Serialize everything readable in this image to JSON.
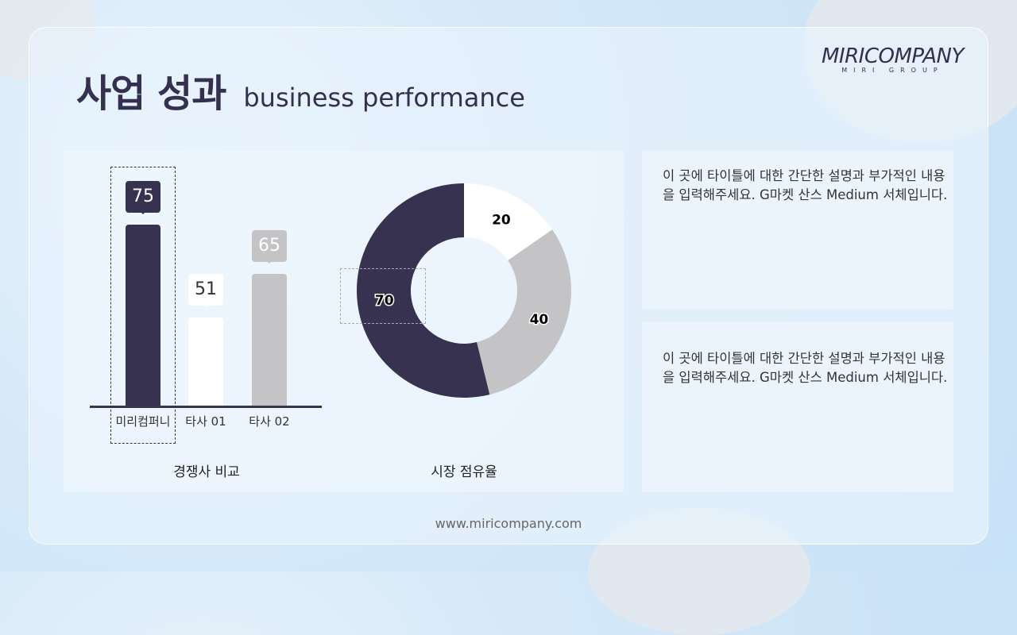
{
  "header": {
    "title_ko": "사업 성과",
    "title_en": "business performance"
  },
  "logo": {
    "main": "MIRICOMPANY",
    "sub": "MIRI GROUP"
  },
  "chart_data": [
    {
      "type": "bar",
      "title": "경쟁사 비교",
      "categories": [
        "미리컴퍼니",
        "타사 01",
        "타사 02"
      ],
      "values": [
        75,
        51,
        65
      ],
      "colors": [
        "#37324f",
        "#ffffff",
        "#c4c4c6"
      ],
      "highlight": "미리컴퍼니"
    },
    {
      "type": "pie",
      "title": "시장 점유율",
      "labels": [
        "20",
        "40",
        "70"
      ],
      "values": [
        20,
        40,
        70
      ],
      "colors": [
        "#ffffff",
        "#c4c4c6",
        "#37324f"
      ],
      "donut": true
    }
  ],
  "descriptions": [
    "이 곳에 타이틀에 대한 간단한 설명과 부가적인 내용을 입력해주세요. G마켓 산스 Medium 서체입니다.",
    "이 곳에 타이틀에 대한 간단한 설명과 부가적인 내용을 입력해주세요. G마켓 산스 Medium 서체입니다."
  ],
  "footer": "www.miricompany.com"
}
